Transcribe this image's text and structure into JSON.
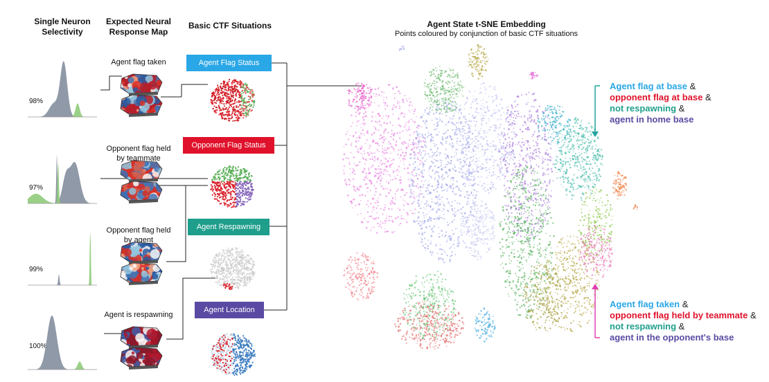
{
  "headers": {
    "col1": [
      "Single Neuron",
      "Selectivity"
    ],
    "col2": [
      "Expected Neural",
      "Response Map"
    ],
    "col3": "Basic CTF Situations"
  },
  "rows": [
    {
      "percent": "98%",
      "response_label": [
        "Agent flag taken"
      ],
      "situation": "Agent Flag Status",
      "situation_color": "#2aa7e6"
    },
    {
      "percent": "97%",
      "response_label": [
        "Opponent flag held",
        "by teammate"
      ],
      "situation": "Opponent Flag Status",
      "situation_color": "#e0122b"
    },
    {
      "percent": "99%",
      "response_label": [
        "Opponent flag held",
        "by agent"
      ],
      "situation": "Agent Respawning",
      "situation_color": "#1f9e8c"
    },
    {
      "percent": "100%",
      "response_label": [
        "Agent is respawning"
      ],
      "situation": "Agent Location",
      "situation_color": "#5b4aa3"
    }
  ],
  "embedding": {
    "title": "Agent State t-SNE Embedding",
    "subtitle": "Points coloured by conjunction of basic CTF situations"
  },
  "annotation_top": {
    "arrow_color": "#1fa39b",
    "lines": [
      {
        "text": "Agent flag at base",
        "amp": " &",
        "color": "#2aa7e6"
      },
      {
        "text": "opponent flag at base",
        "amp": " &",
        "color": "#e0122b"
      },
      {
        "text": "not respawning",
        "amp": " &",
        "color": "#1f9e8c"
      },
      {
        "text": "agent in home base",
        "amp": "",
        "color": "#5b4aa3"
      }
    ]
  },
  "annotation_bottom": {
    "arrow_color": "#e040b0",
    "lines": [
      {
        "text": "Agent flag taken",
        "amp": " &",
        "color": "#2aa7e6"
      },
      {
        "text": "opponent flag held by teammate",
        "amp": " &",
        "color": "#e0122b"
      },
      {
        "text": "not respawning",
        "amp": " &",
        "color": "#1f9e8c"
      },
      {
        "text": "agent in the opponent's base",
        "amp": "",
        "color": "#5b4aa3"
      }
    ]
  },
  "colors": {
    "hist_gray": "#8a93a3",
    "hist_green": "#8fcb7a"
  }
}
